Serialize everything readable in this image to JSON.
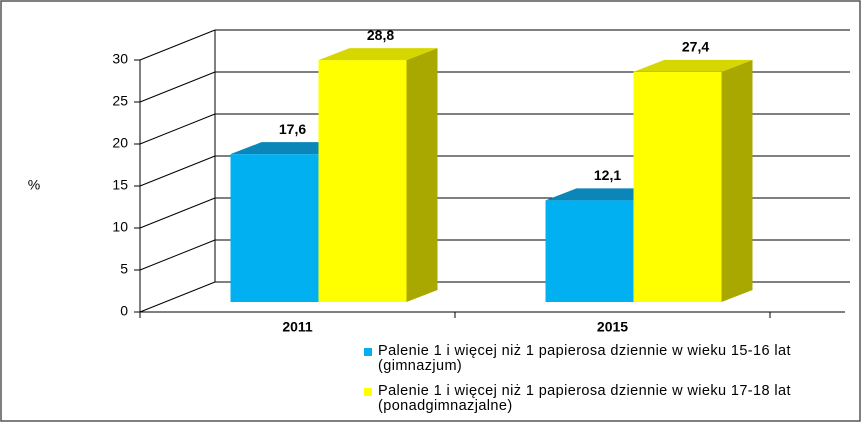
{
  "chart_data": {
    "type": "bar3d",
    "y_label": "%",
    "categories": [
      "2011",
      "2015"
    ],
    "series": [
      {
        "name": "Palenie 1 i więcej niż 1 papierosa dziennie w wieku 15-16 lat (gimnazjum)",
        "color": "#00b0f0",
        "top_color": "#0a86b8",
        "values": [
          17.6,
          12.1
        ],
        "value_labels": [
          "17,6",
          "12,1"
        ]
      },
      {
        "name": "Palenie 1 i więcej niż 1 papierosa dziennie w wieku 17-18 lat (ponadgimnazjalne)",
        "color": "#ffff00",
        "top_color": "#d6d600",
        "side_color": "#a8a800",
        "values": [
          28.8,
          27.4
        ],
        "value_labels": [
          "28,8",
          "27,4"
        ]
      }
    ],
    "ylim": [
      0,
      30
    ],
    "yticks": [
      0,
      5,
      10,
      15,
      20,
      25,
      30
    ],
    "grid": true
  }
}
